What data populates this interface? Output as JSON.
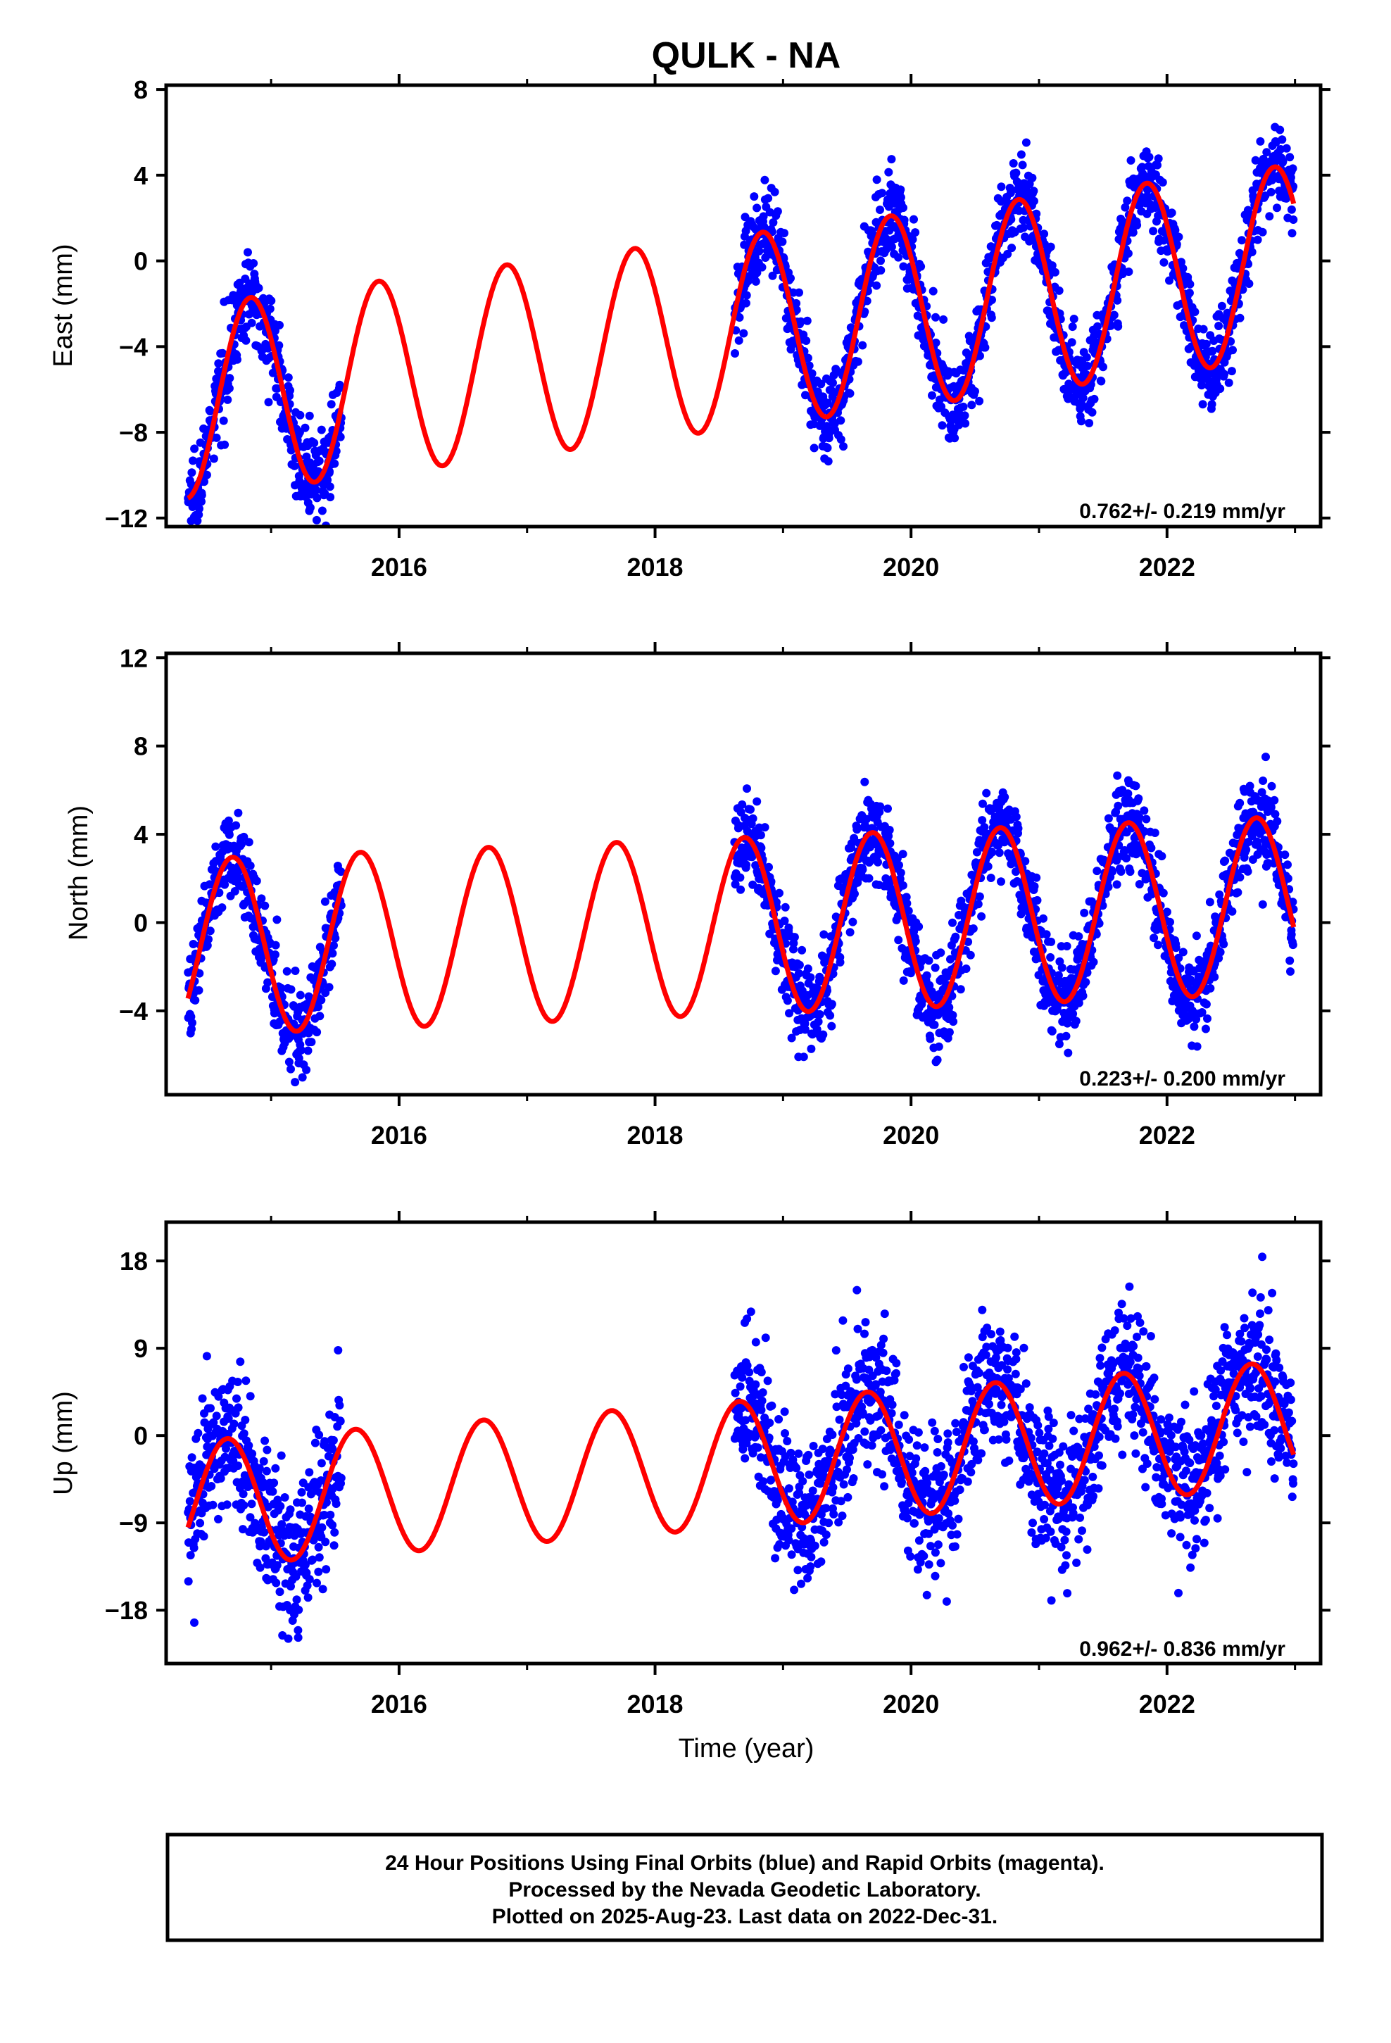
{
  "chart_data": [
    {
      "type": "scatter",
      "component": "east",
      "title": "QULK - NA",
      "xlabel": "",
      "ylabel": "East (mm)",
      "xlim": [
        2014.18,
        2023.2
      ],
      "ylim": [
        -12.4,
        8.2
      ],
      "x_ticks": [
        2016,
        2018,
        2020,
        2022
      ],
      "y_ticks": [
        -12,
        -8,
        -4,
        0,
        4,
        8
      ],
      "x_tick_labels": [
        "2016",
        "2018",
        "2020",
        "2022"
      ],
      "y_tick_labels": [
        "−12",
        "−8",
        "−4",
        "0",
        "4",
        "8"
      ],
      "rate_label": "0.762+/- 0.219 mm/yr",
      "model": {
        "offset": -3.8,
        "trend": 0.762,
        "amp": 4.5,
        "phase": 2.57
      },
      "observation_segments": [
        [
          2014.35,
          2015.55
        ],
        [
          2018.62,
          2022.99
        ]
      ],
      "points_per_year": 340,
      "scatter_sd": 1.0,
      "point_color": "#0000ff",
      "line_color": "#ff0000"
    },
    {
      "type": "scatter",
      "component": "north",
      "xlabel": "",
      "ylabel": "North (mm)",
      "xlim": [
        2014.18,
        2023.2
      ],
      "ylim": [
        -7.8,
        12.2
      ],
      "x_ticks": [
        2016,
        2018,
        2020,
        2022
      ],
      "y_ticks": [
        -4,
        0,
        4,
        8,
        12
      ],
      "x_tick_labels": [
        "2016",
        "2018",
        "2020",
        "2022"
      ],
      "y_tick_labels": [
        "−4",
        "0",
        "4",
        "8",
        "12"
      ],
      "rate_label": "0.223+/- 0.200 mm/yr",
      "model": {
        "offset": -0.3,
        "trend": 0.223,
        "amp": 4.0,
        "phase": -2.82
      },
      "observation_segments": [
        [
          2014.35,
          2015.55
        ],
        [
          2018.62,
          2022.99
        ]
      ],
      "points_per_year": 340,
      "scatter_sd": 1.0,
      "point_color": "#0000ff",
      "line_color": "#ff0000"
    },
    {
      "type": "scatter",
      "component": "up",
      "xlabel": "Time (year)",
      "ylabel": "Up (mm)",
      "xlim": [
        2014.18,
        2023.2
      ],
      "ylim": [
        -23.5,
        22.0
      ],
      "x_ticks": [
        2016,
        2018,
        2020,
        2022
      ],
      "y_ticks": [
        -18,
        -9,
        0,
        9,
        18
      ],
      "x_tick_labels": [
        "2016",
        "2018",
        "2020",
        "2022"
      ],
      "y_tick_labels": [
        "−18",
        "−9",
        "0",
        "9",
        "18"
      ],
      "rate_label": "0.962+/- 0.836 mm/yr",
      "model": {
        "offset": -3.6,
        "trend": 0.962,
        "amp": 6.5,
        "phase": -2.57
      },
      "observation_segments": [
        [
          2014.35,
          2015.55
        ],
        [
          2018.62,
          2022.99
        ]
      ],
      "points_per_year": 340,
      "scatter_sd": 3.8,
      "point_color": "#0000ff",
      "line_color": "#ff0000"
    }
  ],
  "footer": {
    "line1": "24 Hour Positions Using Final Orbits (blue) and Rapid Orbits (magenta).",
    "line2": "Processed by the Nevada Geodetic Laboratory.",
    "line3": "Plotted on 2025-Aug-23. Last data on 2022-Dec-31."
  }
}
